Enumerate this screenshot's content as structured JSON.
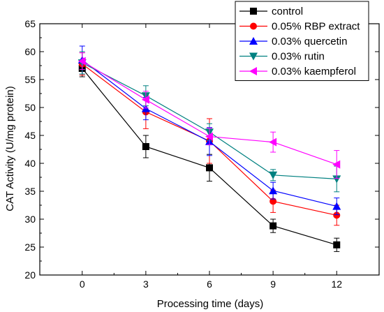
{
  "chart_data": {
    "type": "line",
    "xlabel": "Processing time (days)",
    "ylabel": "CAT Activity (U/mg protein)",
    "xlim": [
      -2,
      14
    ],
    "ylim": [
      20,
      65
    ],
    "xticks": [
      0,
      3,
      6,
      9,
      12
    ],
    "yticks": [
      20,
      25,
      30,
      35,
      40,
      45,
      50,
      55,
      60,
      65
    ],
    "x": [
      0,
      3,
      6,
      9,
      12
    ],
    "grid": false,
    "legend_position": "top-right",
    "series": [
      {
        "name": "control",
        "color": "#000000",
        "marker": "square",
        "values": [
          57.0,
          43.0,
          39.2,
          28.8,
          25.4
        ],
        "errors": [
          1.5,
          2.0,
          2.4,
          1.2,
          1.2
        ]
      },
      {
        "name": "0.05% RBP extract",
        "color": "#ff0000",
        "marker": "circle",
        "values": [
          57.8,
          49.2,
          44.0,
          33.2,
          30.7
        ],
        "errors": [
          2.0,
          3.0,
          4.0,
          2.0,
          1.8
        ]
      },
      {
        "name": "0.03% quercetin",
        "color": "#0000ff",
        "marker": "triangle-up",
        "values": [
          58.5,
          49.8,
          43.9,
          35.1,
          32.3
        ],
        "errors": [
          2.5,
          2.0,
          2.5,
          1.5,
          1.5
        ]
      },
      {
        "name": "0.03% rutin",
        "color": "#008080",
        "marker": "triangle-down",
        "values": [
          58.0,
          52.1,
          45.6,
          37.9,
          37.2
        ],
        "errors": [
          2.0,
          1.8,
          1.5,
          1.0,
          2.3
        ]
      },
      {
        "name": "0.03% kaempferol",
        "color": "#ff00ff",
        "marker": "triangle-left",
        "values": [
          58.3,
          51.4,
          44.8,
          43.8,
          39.8
        ],
        "errors": [
          1.5,
          1.5,
          1.5,
          1.8,
          2.5
        ]
      }
    ]
  }
}
